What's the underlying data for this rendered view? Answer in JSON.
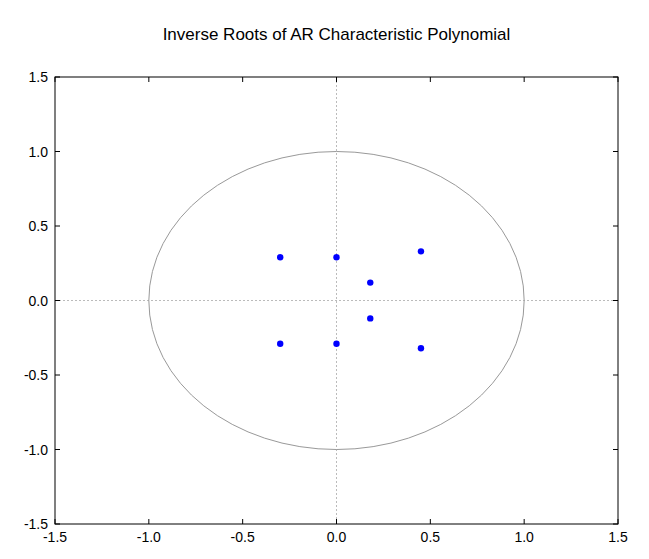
{
  "chart_data": {
    "type": "scatter",
    "title": "Inverse Roots of AR Characteristic Polynomial",
    "x": [
      -0.3,
      0.0,
      0.45,
      0.18,
      0.18,
      -0.3,
      0.0,
      0.45
    ],
    "values": [
      0.29,
      0.29,
      0.33,
      0.12,
      -0.12,
      -0.29,
      -0.29,
      -0.32
    ],
    "color": "#0000ff",
    "marker": "circle",
    "xlim": [
      -1.5,
      1.5
    ],
    "xticks": [
      -1.5,
      {
        "value": -1,
        "label": "-1.0"
      },
      -0.5,
      {
        "value": 0,
        "label": "0.0"
      },
      0.5,
      {
        "value": 1,
        "label": "1.0"
      },
      1.5
    ],
    "ylim": [
      -1.5,
      1.5
    ],
    "yticks": [
      -1.5,
      {
        "value": -1,
        "label": "-1.0"
      },
      -0.5,
      {
        "value": 0,
        "label": "0.0"
      },
      0.5,
      {
        "value": 1,
        "label": "1.0"
      },
      1.5
    ]
  }
}
